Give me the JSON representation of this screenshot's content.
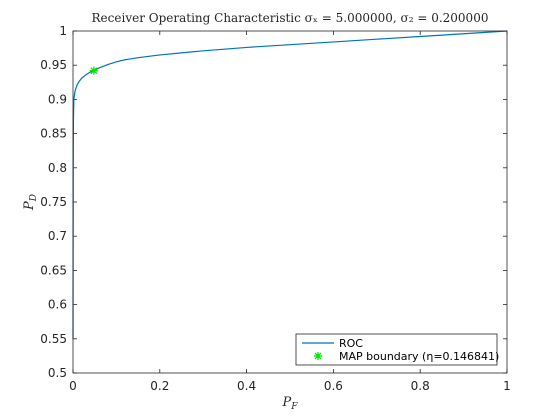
{
  "chart_data": {
    "type": "line",
    "title": "Receiver Operating Characteristic σₓ = 5.000000, σ₂ = 0.200000",
    "xlabel": "P_F",
    "ylabel": "P_D",
    "xlim": [
      0,
      1
    ],
    "ylim": [
      0.5,
      1
    ],
    "xticks": [
      "0",
      "0.2",
      "0.4",
      "0.6",
      "0.8",
      "1"
    ],
    "yticks": [
      "0.5",
      "0.55",
      "0.6",
      "0.65",
      "0.7",
      "0.75",
      "0.8",
      "0.85",
      "0.9",
      "0.95",
      "1"
    ],
    "legend_position": "bottom-right",
    "series": [
      {
        "name": "ROC",
        "color": "#0072BD",
        "x": [
          0,
          0.0005,
          0.001,
          0.002,
          0.004,
          0.006,
          0.01,
          0.015,
          0.02,
          0.03,
          0.04,
          0.05,
          0.06,
          0.08,
          0.1,
          0.12,
          0.15,
          0.2,
          0.25,
          0.3,
          0.4,
          0.5,
          0.6,
          0.7,
          0.8,
          0.9,
          1
        ],
        "y": [
          0.55,
          0.8,
          0.87,
          0.9,
          0.91,
          0.915,
          0.922,
          0.927,
          0.931,
          0.936,
          0.94,
          0.943,
          0.946,
          0.951,
          0.955,
          0.958,
          0.961,
          0.965,
          0.968,
          0.971,
          0.976,
          0.98,
          0.984,
          0.988,
          0.992,
          0.996,
          1.0
        ]
      },
      {
        "name": "MAP boundary (η=0.146841)",
        "marker": "asterisk",
        "color": "#00E600",
        "x": [
          0.048
        ],
        "y": [
          0.942
        ]
      }
    ]
  }
}
